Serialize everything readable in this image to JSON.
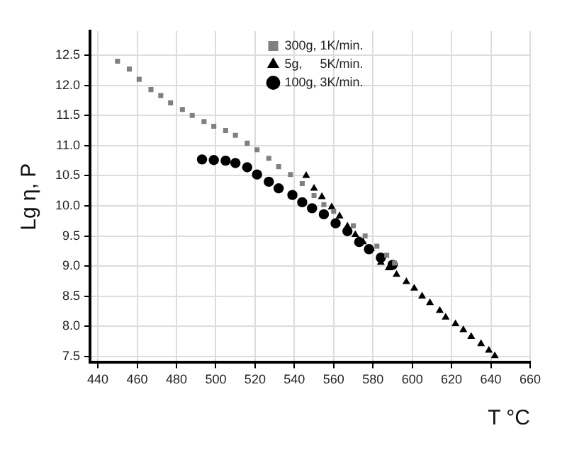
{
  "chart_data": {
    "type": "scatter",
    "xlabel": "T °C",
    "ylabel": "Lg η, P",
    "xlim": [
      436,
      660
    ],
    "ylim": [
      7.4,
      12.9
    ],
    "xticks": [
      440,
      460,
      480,
      500,
      520,
      540,
      560,
      580,
      600,
      620,
      640,
      660
    ],
    "yticks": [
      {
        "value": 7.5,
        "label": "7.5"
      },
      {
        "value": 8,
        "label": "8.0"
      },
      {
        "value": 8.5,
        "label": "8.5"
      },
      {
        "value": 9,
        "label": "9.0"
      },
      {
        "value": 9.5,
        "label": "9.5"
      },
      {
        "value": 10,
        "label": "10.0"
      },
      {
        "value": 10.5,
        "label": "10.5"
      },
      {
        "value": 11,
        "label": "11.0"
      },
      {
        "value": 11.5,
        "label": "11.5"
      },
      {
        "value": 12,
        "label": "12.0"
      },
      {
        "value": 12.5,
        "label": "12.5"
      }
    ],
    "grid": true,
    "legend": "top",
    "series": [
      {
        "name": "300g, 1K/min.",
        "color": "#808080",
        "marker": "square",
        "x": [
          450,
          456,
          461,
          467,
          472,
          477,
          483,
          488,
          494,
          499,
          505,
          510,
          516,
          521,
          527,
          532,
          538,
          544,
          550,
          555,
          560,
          570,
          576,
          582,
          587,
          591
        ],
        "values": [
          12.4,
          12.27,
          12.1,
          11.93,
          11.83,
          11.71,
          11.6,
          11.5,
          11.4,
          11.32,
          11.25,
          11.17,
          11.04,
          10.93,
          10.79,
          10.65,
          10.52,
          10.37,
          10.17,
          10.02,
          9.91,
          9.67,
          9.5,
          9.33,
          9.18,
          9.05
        ]
      },
      {
        "name": "5g,     5K/min.",
        "color": "#000000",
        "marker": "triangle",
        "x": [
          546,
          550,
          554,
          559,
          563,
          567,
          571,
          575,
          579,
          584,
          588,
          592,
          597,
          601,
          605,
          609,
          614,
          617,
          622,
          626,
          630,
          635,
          639,
          642
        ],
        "values": [
          10.5,
          10.29,
          10.15,
          9.98,
          9.83,
          9.66,
          9.52,
          9.4,
          9.29,
          9.06,
          8.97,
          8.86,
          8.74,
          8.63,
          8.5,
          8.39,
          8.26,
          8.15,
          8.04,
          7.94,
          7.83,
          7.71,
          7.6,
          7.51
        ]
      },
      {
        "name": "100g, 3K/min.",
        "color": "#000000",
        "marker": "circle",
        "x": [
          493,
          499,
          505,
          510,
          516,
          521,
          527,
          532,
          539,
          544,
          549,
          555,
          561,
          567,
          573,
          578,
          584,
          590
        ],
        "values": [
          10.77,
          10.76,
          10.75,
          10.71,
          10.64,
          10.52,
          10.4,
          10.29,
          10.18,
          10.06,
          9.96,
          9.86,
          9.71,
          9.58,
          9.4,
          9.28,
          9.14,
          9.02
        ]
      }
    ]
  }
}
